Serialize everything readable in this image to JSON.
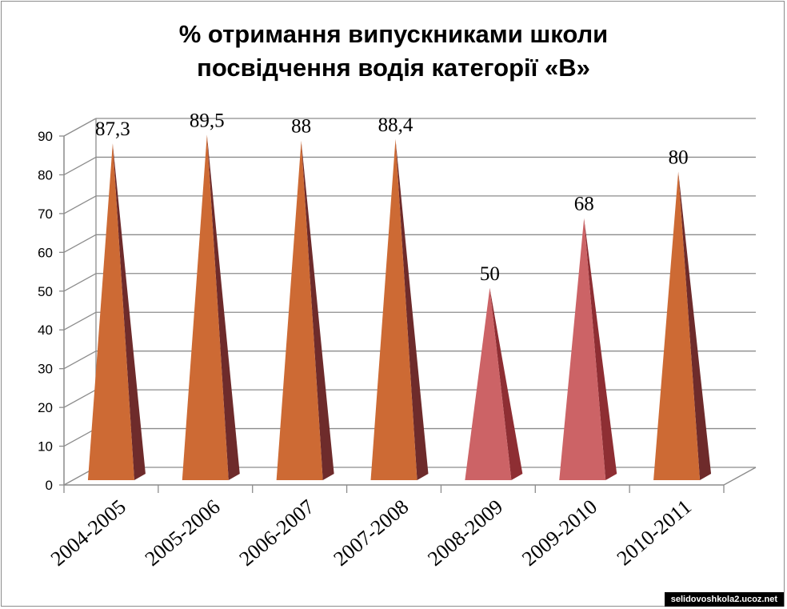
{
  "chart_data": {
    "type": "bar",
    "shape": "pyramid",
    "title_lines": [
      "% отримання випускниками школи",
      "посвідчення водія категорії «В»"
    ],
    "categories": [
      "2004-2005",
      "2005-2006",
      "2006-2007",
      "2007-2008",
      "2008-2009",
      "2009-2010",
      "2010-2011"
    ],
    "values": [
      87.3,
      89.5,
      88,
      88.4,
      50,
      68,
      80
    ],
    "data_labels": [
      "87,3",
      "89,5",
      "88",
      "88,4",
      "50",
      "68",
      "80"
    ],
    "y_ticks": [
      "0",
      "10",
      "20",
      "30",
      "40",
      "50",
      "60",
      "70",
      "80",
      "90"
    ],
    "ylim": [
      0,
      90
    ],
    "grid": true,
    "legend": "none",
    "colors": {
      "default_front": "#cd6a34",
      "default_side": "#6e2b2b",
      "highlight_front": "#cc6366",
      "highlight_side": "#8e2e33",
      "grid": "#8c8c8c",
      "axis": "#8c8c8c"
    },
    "highlight_categories": [
      "2008-2009",
      "2009-2010"
    ]
  },
  "watermark": "selidovoshkola2.ucoz.net"
}
